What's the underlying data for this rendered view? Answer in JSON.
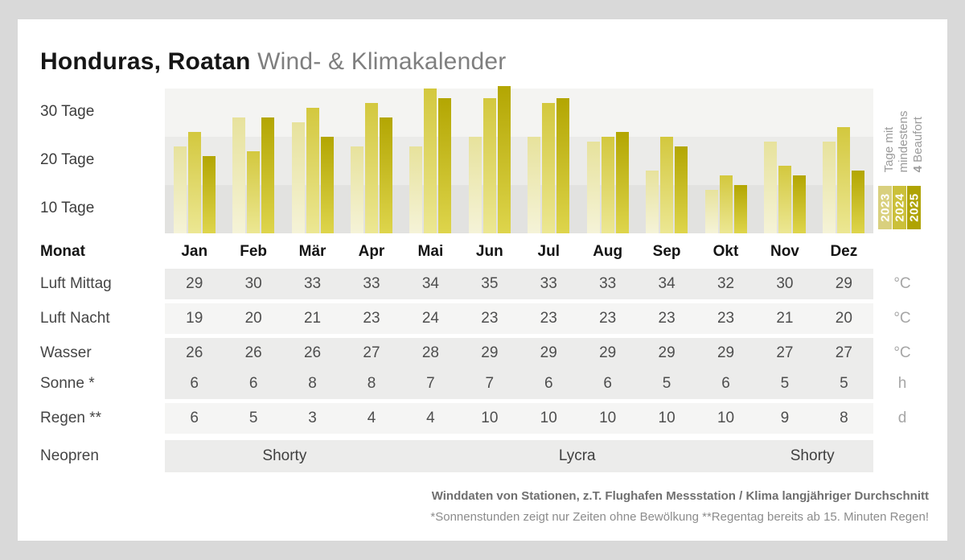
{
  "title": {
    "location": "Honduras, Roatan",
    "subtitle": " Wind- & Klimakalender"
  },
  "chart": {
    "y_axis_labels": [
      "30 Tage",
      "20 Tage",
      "10 Tage"
    ],
    "legend": {
      "line1": "Tage mit",
      "line2": "mindestens",
      "beaufort_num": "4",
      "beaufort_rest": " Beaufort",
      "years": [
        {
          "label": "2023",
          "color": "#d9d07e"
        },
        {
          "label": "2024",
          "color": "#cbc03a"
        },
        {
          "label": "2025",
          "color": "#afa303"
        }
      ]
    }
  },
  "chart_data": {
    "type": "bar",
    "title": "Tage mit mindestens 4 Beaufort",
    "categories": [
      "Jan",
      "Feb",
      "Mär",
      "Apr",
      "Mai",
      "Jun",
      "Jul",
      "Aug",
      "Sep",
      "Okt",
      "Nov",
      "Dez"
    ],
    "series": [
      {
        "name": "2023",
        "color_top": "#e7e29c",
        "color_bottom": "#f5f3d8",
        "values": [
          23,
          29,
          28,
          23,
          23,
          25,
          25,
          24,
          18,
          14,
          24,
          24
        ]
      },
      {
        "name": "2024",
        "color_top": "#d3c83e",
        "color_bottom": "#ece793",
        "values": [
          26,
          22,
          31,
          32,
          35,
          33,
          32,
          25,
          25,
          17,
          19,
          27
        ]
      },
      {
        "name": "2025",
        "color_top": "#b3a602",
        "color_bottom": "#ded54c",
        "values": [
          21,
          29,
          25,
          29,
          33,
          35.5,
          33,
          26,
          23,
          15,
          17,
          18
        ]
      }
    ],
    "ylabel": "Tage",
    "ylim": [
      5,
      35
    ],
    "gridline_values": [
      10,
      20,
      30
    ],
    "legend_position": "right"
  },
  "table": {
    "month_header": "Monat",
    "months": [
      "Jan",
      "Feb",
      "Mär",
      "Apr",
      "Mai",
      "Jun",
      "Jul",
      "Aug",
      "Sep",
      "Okt",
      "Nov",
      "Dez"
    ],
    "rows": [
      {
        "key": "luft-mittag",
        "label": "Luft Mittag",
        "unit": "°C",
        "shade": "dark",
        "values": [
          29,
          30,
          33,
          33,
          34,
          35,
          33,
          33,
          34,
          32,
          30,
          29
        ]
      },
      {
        "key": "luft-nacht",
        "label": "Luft Nacht",
        "unit": "°C",
        "shade": "light",
        "values": [
          19,
          20,
          21,
          23,
          24,
          23,
          23,
          23,
          23,
          23,
          21,
          20
        ]
      },
      {
        "key": "wasser",
        "label": "Wasser",
        "unit": "°C",
        "shade": "dark",
        "values": [
          26,
          26,
          26,
          27,
          28,
          29,
          29,
          29,
          29,
          29,
          27,
          27
        ]
      },
      {
        "key": "sonne",
        "label": "Sonne *",
        "unit": "h",
        "shade": "dark",
        "values": [
          6,
          6,
          8,
          8,
          7,
          7,
          6,
          6,
          5,
          6,
          5,
          5
        ]
      },
      {
        "key": "regen",
        "label": "Regen **",
        "unit": "d",
        "shade": "light",
        "values": [
          6,
          5,
          3,
          4,
          4,
          10,
          10,
          10,
          10,
          10,
          9,
          8
        ]
      },
      {
        "key": "neopren",
        "label": "Neopren",
        "unit": "",
        "shade": "dark",
        "spans": [
          {
            "text": "Shorty",
            "pos_percent": 16.9
          },
          {
            "text": "Lycra",
            "pos_percent": 58.2
          },
          {
            "text": "Shorty",
            "pos_percent": 91.4
          }
        ]
      }
    ]
  },
  "footer": {
    "line1": "Winddaten von Stationen, z.T. Flughafen Messstation / Klima langjähriger Durchschnitt",
    "line2": "*Sonnenstunden zeigt nur Zeiten ohne Bewölkung  **Regentag bereits ab 15. Minuten Regen!"
  }
}
